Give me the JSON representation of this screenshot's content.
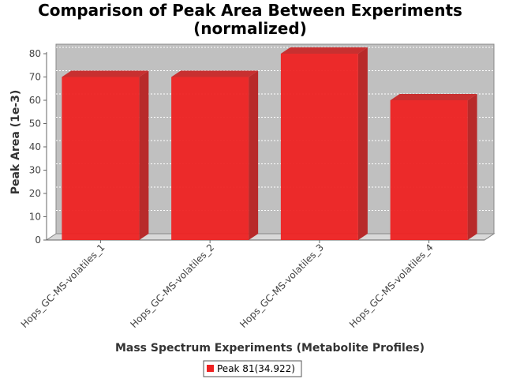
{
  "chart_data": {
    "type": "bar",
    "title": "Comparison of Peak Area Between Experiments",
    "subtitle": "(normalized)",
    "xlabel": "Mass Spectrum Experiments (Metabolite Profiles)",
    "ylabel": "Peak Area (1e-3)",
    "categories": [
      "Hops_GC-MS-volatiles_1",
      "Hops_GC-MS-volatiles_2",
      "Hops_GC-MS-volatiles_3",
      "Hops_GC-MS-volatiles_4"
    ],
    "series": [
      {
        "name": "Peak 81(34.922)",
        "values": [
          70,
          70,
          80,
          60
        ],
        "color": "#ee2222"
      }
    ],
    "ylim": [
      0,
      80
    ],
    "yticks": [
      "0",
      "10",
      "20",
      "30",
      "40",
      "50",
      "60",
      "70",
      "80"
    ],
    "grid": true,
    "legend": "bottom-center"
  }
}
